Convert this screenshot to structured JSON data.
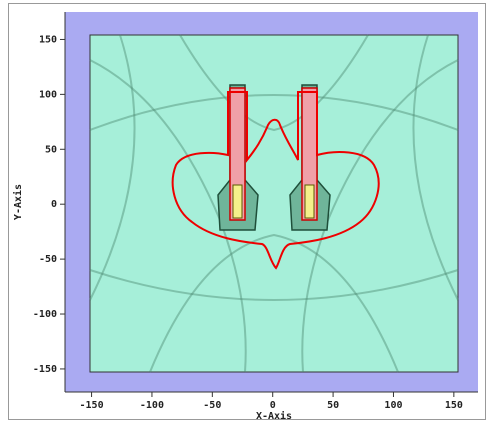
{
  "chart_data": {
    "type": "field",
    "x_label": "X-Axis",
    "y_label": "Y-Axis",
    "xlim": [
      -172,
      170
    ],
    "ylim": [
      -171,
      175
    ],
    "xticks": [
      -150,
      -100,
      -50,
      0,
      50,
      100,
      150
    ],
    "yticks": [
      -150,
      -100,
      -50,
      0,
      50,
      100,
      150
    ]
  }
}
